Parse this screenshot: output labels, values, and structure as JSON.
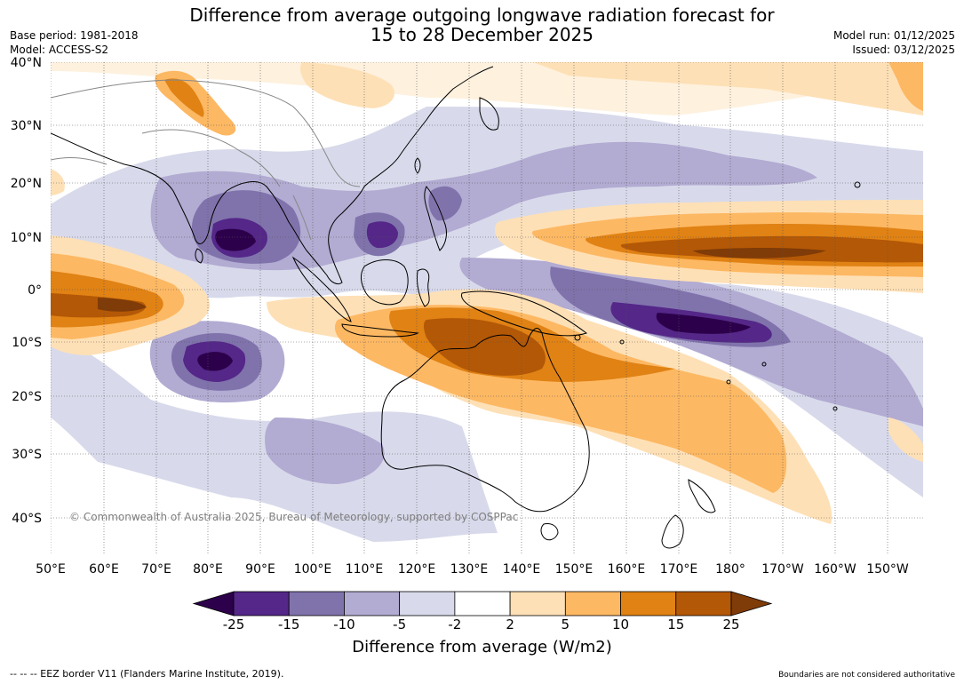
{
  "title": {
    "line1": "Difference from average outgoing longwave radiation forecast for",
    "line2": "15 to 28 December 2025"
  },
  "meta_left": {
    "base_period": "Base period: 1981-2018",
    "model": "Model: ACCESS-S2"
  },
  "meta_right": {
    "model_run": "Model run: 01/12/2025",
    "issued": "Issued: 03/12/2025"
  },
  "map": {
    "lat_labels": [
      "40°N",
      "30°N",
      "20°N",
      "10°N",
      "0°",
      "10°S",
      "20°S",
      "30°S",
      "40°S"
    ],
    "lon_labels": [
      "50°E",
      "60°E",
      "70°E",
      "80°E",
      "90°E",
      "100°E",
      "110°E",
      "120°E",
      "130°E",
      "140°E",
      "150°E",
      "160°E",
      "170°E",
      "180°",
      "170°W",
      "160°W",
      "150°W"
    ],
    "copyright": "© Commonwealth of Australia 2025, Bureau of Meteorology, supported by COSPPac",
    "ocean_color": "#ffffff",
    "coast_color": "#000000",
    "border_color": "#888888"
  },
  "colorbar": {
    "ticks": [
      "-25",
      "-15",
      "-10",
      "-5",
      "-2",
      "2",
      "5",
      "10",
      "15",
      "25"
    ],
    "colors": [
      "#2d004b",
      "#542788",
      "#8073ac",
      "#b2abd2",
      "#d8daeb",
      "#ffffff",
      "#fee0b6",
      "#fdb863",
      "#e08214",
      "#b35806",
      "#7f3b08"
    ],
    "label": "Difference from average (W/m2)"
  },
  "footer": {
    "left": "--  --  -- EEZ border V11 (Flanders Marine Institute, 2019).",
    "right": "Boundaries are not considered authoritative"
  }
}
